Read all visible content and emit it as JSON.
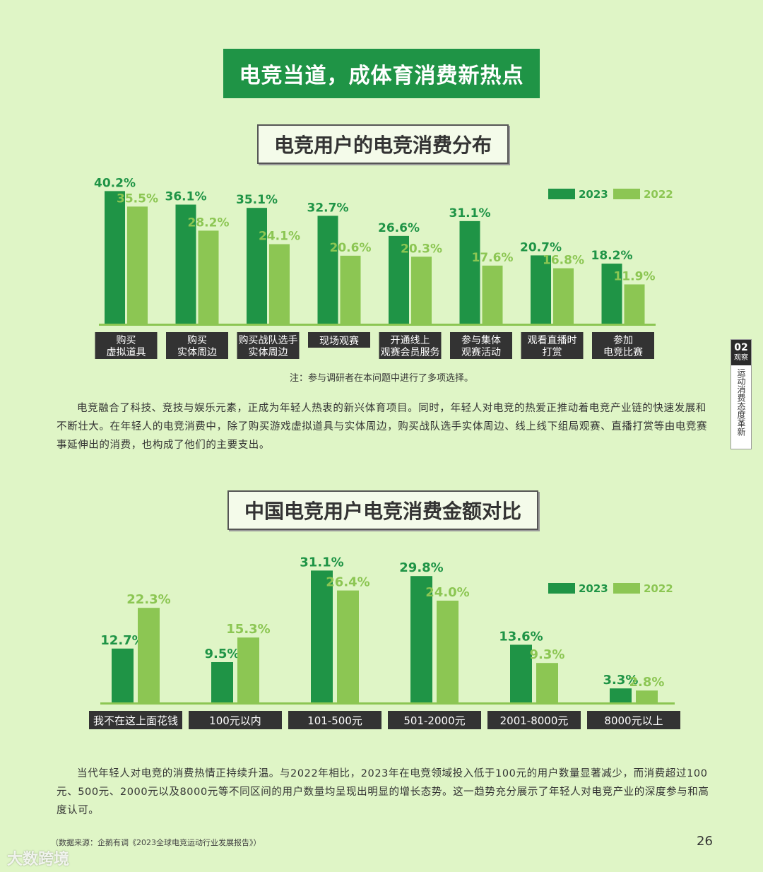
{
  "banner": "电竞当道，成体育消费新热点",
  "chart1_title": "电竞用户的电竞消费分布",
  "chart1_note": "注：参与调研者在本问题中进行了多项选择。",
  "para1": "电竞融合了科技、竞技与娱乐元素，正成为年轻人热衷的新兴体育项目。同时，年轻人对电竞的热爱正推动着电竞产业链的快速发展和不断壮大。在年轻人的电竞消费中，除了购买游戏虚拟道具与实体周边，购买战队选手实体周边、线上线下组局观赛、直播打赏等由电竞赛事延伸出的消费，也构成了他们的主要支出。",
  "chart2_title": "中国电竞用户电竞消费金额对比",
  "para2": "当代年轻人对电竞的消费热情正持续升温。与2022年相比，2023年在电竞领域投入低于100元的用户数量显著减少，而消费超过100元、500元、2000元以及8000元等不同区间的用户数量均呈现出明显的增长态势。这一趋势充分展示了年轻人对电竞产业的深度参与和高度认可。",
  "source": "（数据来源：企鹅有调《2023全球电竞运动行业发展报告》）",
  "page_number": "26",
  "sidetab": {
    "num": "02",
    "label": "观察",
    "text": "运动消费态度革新"
  },
  "watermark": "大数跨境",
  "colors": {
    "y2023": "#1f9446",
    "y2022": "#8cc653",
    "banner": "#1f9446",
    "background": "#dff5c6"
  },
  "chart_data": [
    {
      "type": "bar",
      "title": "电竞用户的电竞消费分布",
      "categories": [
        [
          "购买",
          "虚拟道具"
        ],
        [
          "购买",
          "实体周边"
        ],
        [
          "购买战队选手",
          "实体周边"
        ],
        [
          "现场观赛"
        ],
        [
          "开通线上",
          "观赛会员服务"
        ],
        [
          "参与集体",
          "观赛活动"
        ],
        [
          "观看直播时",
          "打赏"
        ],
        [
          "参加",
          "电竞比赛"
        ]
      ],
      "series": [
        {
          "name": "2023",
          "values": [
            40.2,
            36.1,
            35.1,
            32.7,
            26.6,
            31.1,
            20.7,
            18.2
          ]
        },
        {
          "name": "2022",
          "values": [
            35.5,
            28.2,
            24.1,
            20.6,
            20.3,
            17.6,
            16.8,
            11.9
          ]
        }
      ],
      "unit": "%",
      "legend": "top-right",
      "ylim": [
        0,
        45
      ]
    },
    {
      "type": "bar",
      "title": "中国电竞用户电竞消费金额对比",
      "categories": [
        [
          "我不在这上面花钱"
        ],
        [
          "100元以内"
        ],
        [
          "101-500元"
        ],
        [
          "501-2000元"
        ],
        [
          "2001-8000元"
        ],
        [
          "8000元以上"
        ]
      ],
      "series": [
        {
          "name": "2023",
          "values": [
            12.7,
            9.5,
            31.1,
            29.8,
            13.6,
            3.3
          ]
        },
        {
          "name": "2022",
          "values": [
            22.3,
            15.3,
            26.4,
            24.0,
            9.3,
            2.8
          ]
        }
      ],
      "unit": "%",
      "legend": "top-right",
      "ylim": [
        0,
        35
      ]
    }
  ]
}
